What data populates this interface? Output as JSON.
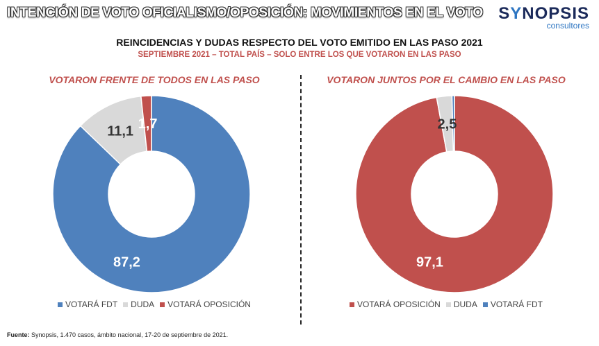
{
  "header": {
    "title": "INTENCIÓN DE VOTO OFICIALISMO/OPOSICIÓN: MOVIMIENTOS EN EL VOTO",
    "logo_part1": "S",
    "logo_part2": "Y",
    "logo_part3": "NOPSIS",
    "logo_sub": "consultores"
  },
  "subtitle": "REINCIDENCIAS Y DUDAS RESPECTO DEL VOTO EMITIDO EN LAS PASO 2021",
  "subtitle2": "SEPTIEMBRE 2021 – TOTAL PAÍS – SOLO ENTRE LOS QUE VOTARON EN LAS PASO",
  "colors": {
    "fdt": "#4f81bd",
    "duda": "#d9d9d9",
    "oposicion": "#c0504d"
  },
  "chart_data": [
    {
      "type": "pie",
      "title": "VOTARON FRENTE DE TODOS EN LAS PASO",
      "series": [
        {
          "name": "VOTARÁ FDT",
          "value": 87.2,
          "label": "87,2",
          "color": "#4f81bd"
        },
        {
          "name": "DUDA",
          "value": 11.1,
          "label": "11,1",
          "color": "#d9d9d9"
        },
        {
          "name": "VOTARÁ OPOSICIÓN",
          "value": 1.7,
          "label": "1,7",
          "color": "#c0504d"
        }
      ],
      "legend": [
        "VOTARÁ FDT",
        "DUDA",
        "VOTARÁ OPOSICIÓN"
      ],
      "legend_colors": [
        "#4f81bd",
        "#d9d9d9",
        "#c0504d"
      ]
    },
    {
      "type": "pie",
      "title": "VOTARON JUNTOS POR EL CAMBIO EN LAS PASO",
      "series": [
        {
          "name": "VOTARÁ OPOSICIÓN",
          "value": 97.1,
          "label": "97,1",
          "color": "#c0504d"
        },
        {
          "name": "DUDA",
          "value": 2.5,
          "label": "2,5",
          "color": "#d9d9d9"
        },
        {
          "name": "VOTARÁ FDT",
          "value": 0.4,
          "label": "",
          "color": "#4f81bd"
        }
      ],
      "legend": [
        "VOTARÁ OPOSICIÓN",
        "DUDA",
        "VOTARÁ FDT"
      ],
      "legend_colors": [
        "#c0504d",
        "#d9d9d9",
        "#4f81bd"
      ]
    }
  ],
  "source": {
    "label": "Fuente:",
    "text": " Synopsis, 1.470 casos, ámbito nacional, 17-20 de septiembre de 2021."
  }
}
